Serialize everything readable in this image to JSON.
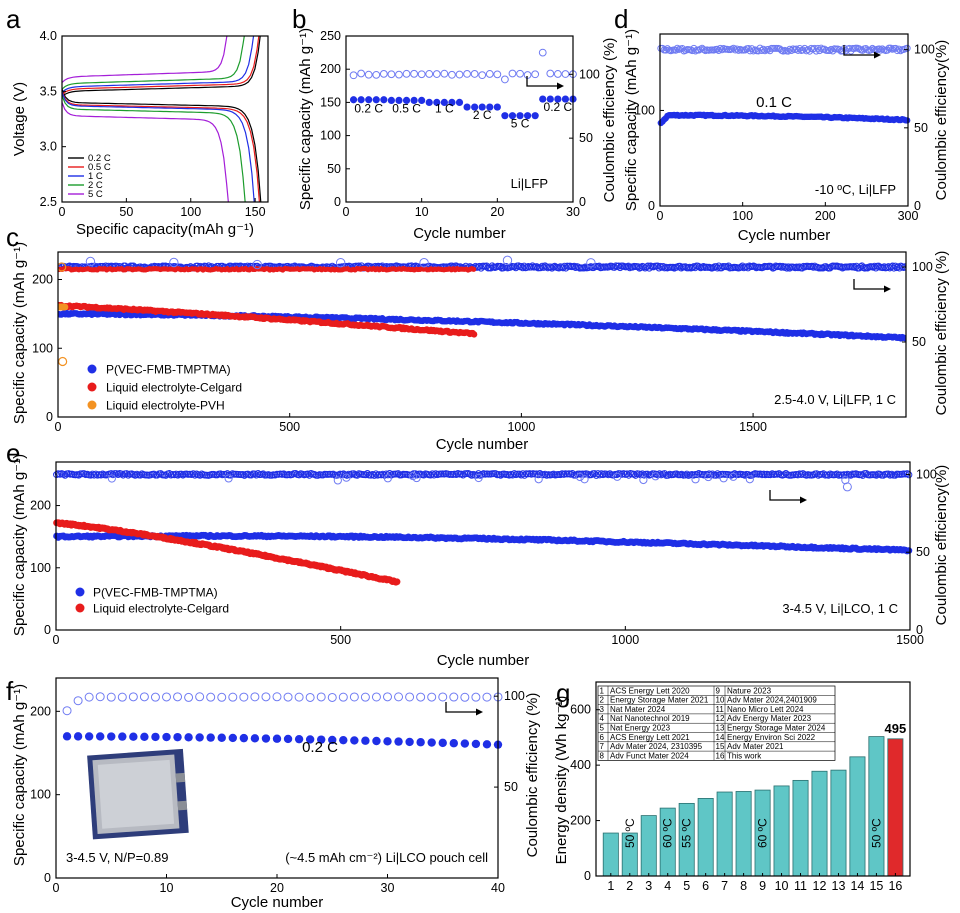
{
  "colors": {
    "blue": "#1f2fe6",
    "blue_open": "#6f7bf2",
    "red": "#e81c1c",
    "orange": "#f39222",
    "teal": "#5fc6c6",
    "highlight_red": "#e0292b"
  },
  "panels": {
    "a": {
      "letter": "a"
    },
    "b": {
      "letter": "b"
    },
    "c": {
      "letter": "c"
    },
    "d": {
      "letter": "d"
    },
    "e": {
      "letter": "e"
    },
    "f": {
      "letter": "f"
    },
    "g": {
      "letter": "g"
    }
  },
  "chart_data": [
    {
      "id": "a",
      "type": "line",
      "xlabel": "Specific capacity(mAh g⁻¹)",
      "ylabel": "Voltage (V)",
      "xlim": [
        0,
        160
      ],
      "ylim": [
        2.5,
        4.0
      ],
      "x_ticks": [
        "0",
        "50",
        "100",
        "150"
      ],
      "y_ticks": [
        "2.5",
        "3.0",
        "3.5",
        "4.0"
      ],
      "legend_placement": "bottom-left",
      "series": [
        {
          "name": "0.2 C",
          "color": "#000000",
          "capacity": 155,
          "v_charge": 3.45,
          "v_discharge": 3.4
        },
        {
          "name": "0.5 C",
          "color": "#e81c1c",
          "capacity": 154,
          "v_charge": 3.47,
          "v_discharge": 3.38
        },
        {
          "name": "1 C",
          "color": "#1f2fe6",
          "capacity": 150,
          "v_charge": 3.49,
          "v_discharge": 3.37
        },
        {
          "name": "2 C",
          "color": "#1c9c2c",
          "capacity": 143,
          "v_charge": 3.52,
          "v_discharge": 3.34
        },
        {
          "name": "5 C",
          "color": "#a41ed8",
          "capacity": 130,
          "v_charge": 3.58,
          "v_discharge": 3.28
        }
      ]
    },
    {
      "id": "b",
      "type": "scatter",
      "xlabel": "Cycle number",
      "ylabel": "Specific capacity (mAh g⁻¹)",
      "y2label": "",
      "xlim": [
        0,
        30
      ],
      "ylim": [
        0,
        250
      ],
      "y2lim": [
        0,
        130
      ],
      "x_ticks": [
        "0",
        "10",
        "20",
        "30"
      ],
      "y_ticks": [
        "0",
        "50",
        "100",
        "150",
        "200",
        "250"
      ],
      "y2_ticks": [
        "0",
        "50",
        "100"
      ],
      "annotation": "Li|LFP",
      "rate_labels": [
        {
          "text": "0.2 C",
          "x": 3,
          "y": 135
        },
        {
          "text": "0.5 C",
          "x": 8,
          "y": 135
        },
        {
          "text": "1 C",
          "x": 13,
          "y": 135
        },
        {
          "text": "2 C",
          "x": 18,
          "y": 125
        },
        {
          "text": "5 C",
          "x": 23,
          "y": 112
        },
        {
          "text": "0.2 C",
          "x": 28,
          "y": 137
        }
      ],
      "segments": [
        {
          "start": 1,
          "end": 5,
          "capacity": 154
        },
        {
          "start": 6,
          "end": 10,
          "capacity": 153
        },
        {
          "start": 11,
          "end": 15,
          "capacity": 150
        },
        {
          "start": 16,
          "end": 20,
          "capacity": 143
        },
        {
          "start": 21,
          "end": 25,
          "capacity": 130
        },
        {
          "start": 26,
          "end": 30,
          "capacity": 155
        }
      ],
      "ce_base": 100,
      "ce_outliers": [
        {
          "x": 21,
          "y": 96
        },
        {
          "x": 26,
          "y": 117
        }
      ]
    },
    {
      "id": "c",
      "type": "scatter",
      "xlabel": "Cycle number",
      "ylabel": "Specific capacity (mAh g⁻¹)",
      "y2label": "Coulombic efficiency (%)",
      "xlim": [
        0,
        1830
      ],
      "ylim": [
        0,
        240
      ],
      "y2lim": [
        0,
        110
      ],
      "x_ticks": [
        "0",
        "500",
        "1000",
        "1500"
      ],
      "y_ticks": [
        "0",
        "100",
        "200"
      ],
      "y2_ticks": [
        "50",
        "100"
      ],
      "annotation": "2.5-4.0 V, Li|LFP, 1 C",
      "legend_placement": "bottom-left",
      "series": [
        {
          "name": "P(VEC-FMB-TMPTMA)",
          "color": "#1f2fe6",
          "start_cap": 150,
          "end_cap": 115,
          "cycles": 1830
        },
        {
          "name": "Liquid electrolyte-Celgard",
          "color": "#e81c1c",
          "start_cap": 162,
          "end_cap": 121,
          "cycles": 900
        },
        {
          "name": "Liquid electrolyte-PVH",
          "color": "#f39222",
          "start_cap": 160,
          "end_cap": 158,
          "cycles": 15
        }
      ],
      "ce_value": 100
    },
    {
      "id": "d",
      "type": "scatter",
      "xlabel": "Cycle number",
      "ylabel": "Specific capacity (mAh g⁻¹)",
      "y2label": "Coulombic efficiency(%)",
      "xlim": [
        0,
        300
      ],
      "ylim": [
        0,
        180
      ],
      "y2lim": [
        0,
        110
      ],
      "x_ticks": [
        "0",
        "100",
        "200",
        "300"
      ],
      "y_ticks": [
        "0",
        "100"
      ],
      "y2_ticks": [
        "0",
        "50",
        "100"
      ],
      "rate_label": "0.1 C",
      "annotation": "-10 ºC, Li|LFP",
      "capacity_start": 86,
      "capacity_plateau": 95,
      "capacity_end": 90,
      "ce_value": 100
    },
    {
      "id": "e",
      "type": "scatter",
      "xlabel": "Cycle number",
      "ylabel": "Specific capacity (mAh g⁻¹)",
      "y2label": "Coulombic efficiency(%)",
      "xlim": [
        0,
        1500
      ],
      "ylim": [
        0,
        270
      ],
      "y2lim": [
        0,
        108
      ],
      "x_ticks": [
        "0",
        "500",
        "1000",
        "1500"
      ],
      "y_ticks": [
        "0",
        "100",
        "200"
      ],
      "y2_ticks": [
        "0",
        "50",
        "100"
      ],
      "annotation": "3-4.5 V, Li|LCO, 1 C",
      "legend_placement": "bottom-left",
      "series": [
        {
          "name": "P(VEC-FMB-TMPTMA)",
          "color": "#1f2fe6",
          "start_cap": 150,
          "end_cap": 130,
          "cycles": 1500
        },
        {
          "name": "Liquid electrolyte-Celgard",
          "color": "#e81c1c",
          "start_cap": 172,
          "end_cap": 77,
          "cycles": 600
        }
      ],
      "ce_value": 100
    },
    {
      "id": "f",
      "type": "scatter",
      "xlabel": "Cycle number",
      "ylabel": "Specific capacity (mAh g⁻¹)",
      "y2label": "Coulombic efficiency (%)",
      "xlim": [
        0,
        40
      ],
      "ylim": [
        0,
        240
      ],
      "y2lim": [
        0,
        110
      ],
      "x_ticks": [
        "0",
        "10",
        "20",
        "30",
        "40"
      ],
      "y_ticks": [
        "0",
        "100",
        "200"
      ],
      "y2_ticks": [
        "50",
        "100"
      ],
      "rate_label": "0.2 C",
      "annotation_left": "3-4.5 V, N/P=0.89",
      "annotation_right": "(~4.5 mAh cm⁻²) Li|LCO pouch cell",
      "capacity_start": 170,
      "capacity_end": 160,
      "ce_first": 92,
      "ce_value": 99.5
    },
    {
      "id": "g",
      "type": "bar",
      "ylabel": "Energy density (Wh kg⁻¹)",
      "ylim": [
        0,
        700
      ],
      "y_ticks": [
        "0",
        "200",
        "400",
        "600"
      ],
      "categories": [
        "1",
        "2",
        "3",
        "4",
        "5",
        "6",
        "7",
        "8",
        "9",
        "10",
        "11",
        "12",
        "13",
        "14",
        "15",
        "16"
      ],
      "values": [
        155,
        155,
        218,
        245,
        262,
        280,
        303,
        305,
        310,
        325,
        345,
        378,
        382,
        430,
        503,
        495
      ],
      "value_label": {
        "index": 15,
        "text": "495"
      },
      "temperature_labels": [
        {
          "index": 1,
          "text": "50 ºC"
        },
        {
          "index": 3,
          "text": "60 ºC"
        },
        {
          "index": 4,
          "text": "55 ºC"
        },
        {
          "index": 8,
          "text": "60 ºC"
        },
        {
          "index": 14,
          "text": "50 ºC"
        }
      ],
      "references": [
        {
          "n": "1",
          "ref": "ACS Energy Lett 2020"
        },
        {
          "n": "2",
          "ref": "Energy Storage Mater 2021"
        },
        {
          "n": "3",
          "ref": "Nat Mater 2024"
        },
        {
          "n": "4",
          "ref": "Nat Nanotechnol 2019"
        },
        {
          "n": "5",
          "ref": "Nat Energy 2023"
        },
        {
          "n": "6",
          "ref": "ACS Energy Lett 2021"
        },
        {
          "n": "7",
          "ref": "Adv Mater 2024, 2310395"
        },
        {
          "n": "8",
          "ref": "Adv Funct Mater 2024"
        },
        {
          "n": "9",
          "ref": "Nature 2023"
        },
        {
          "n": "10",
          "ref": "Adv Mater 2024,2401909"
        },
        {
          "n": "11",
          "ref": "Nano Micro Lett 2024"
        },
        {
          "n": "12",
          "ref": "Adv Energy Mater 2023"
        },
        {
          "n": "13",
          "ref": "Energy Storage Mater 2024"
        },
        {
          "n": "14",
          "ref": "Energy Environ Sci 2022"
        },
        {
          "n": "15",
          "ref": "Adv Mater 2021"
        },
        {
          "n": "16",
          "ref": "This work"
        }
      ]
    }
  ]
}
